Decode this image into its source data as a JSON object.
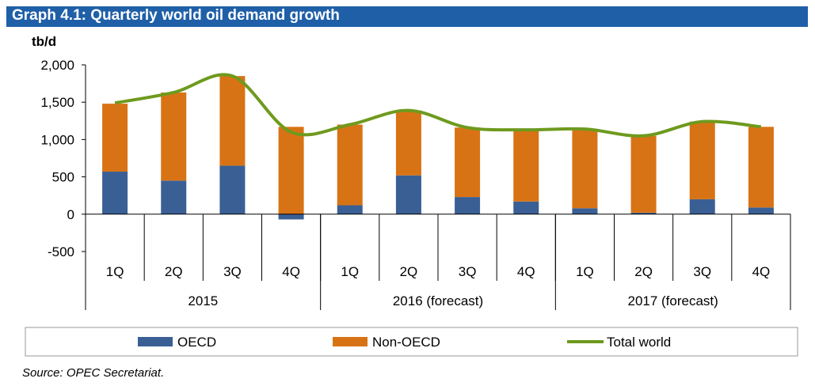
{
  "title": "Graph 4.1: Quarterly world oil demand growth",
  "source": "Source: OPEC Secretariat.",
  "colors": {
    "title_bg": "#1f5fa8",
    "oecd": "#3a5f95",
    "non_oecd": "#d87315",
    "total": "#6e9a1e"
  },
  "chart_data": {
    "type": "bar",
    "stacked": true,
    "ylabel": "tb/d",
    "ylim": [
      -500,
      2000
    ],
    "yticks": [
      -500,
      0,
      500,
      1000,
      1500,
      2000
    ],
    "ytick_labels": [
      "-500",
      "0",
      "500",
      "1,000",
      "1,500",
      "2,000"
    ],
    "categories": [
      "1Q",
      "2Q",
      "3Q",
      "4Q",
      "1Q",
      "2Q",
      "3Q",
      "4Q",
      "1Q",
      "2Q",
      "3Q",
      "4Q"
    ],
    "groups": [
      {
        "label": "2015",
        "count": 4
      },
      {
        "label": "2016 (forecast)",
        "count": 4
      },
      {
        "label": "2017 (forecast)",
        "count": 4
      }
    ],
    "series": [
      {
        "name": "OECD",
        "type": "bar",
        "values": [
          570,
          450,
          650,
          -70,
          120,
          520,
          230,
          170,
          80,
          20,
          200,
          90
        ]
      },
      {
        "name": "Non-OECD",
        "type": "bar",
        "values": [
          910,
          1180,
          1200,
          1170,
          1080,
          870,
          930,
          960,
          1060,
          1030,
          1040,
          1080
        ]
      },
      {
        "name": "Total world",
        "type": "line",
        "values": [
          1490,
          1630,
          1850,
          1100,
          1200,
          1390,
          1160,
          1130,
          1140,
          1050,
          1240,
          1170
        ]
      }
    ],
    "legend_position": "bottom",
    "grid": false
  }
}
